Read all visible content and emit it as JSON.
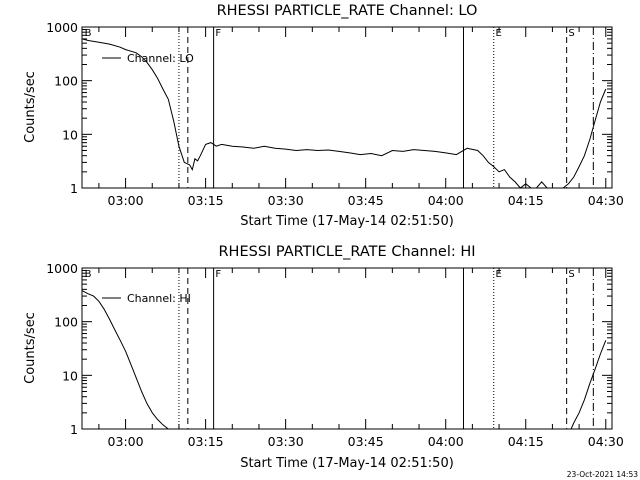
{
  "footer": {
    "timestamp": "23-Oct-2021 14:53"
  },
  "markers": [
    "B",
    "F",
    "E",
    "S"
  ],
  "chart_data": [
    {
      "type": "line",
      "title": "RHESSI PARTICLE_RATE Channel: LO",
      "xlabel": "Start Time (17-May-14 02:51:50)",
      "ylabel": "Counts/sec",
      "yscale": "log",
      "ylim": [
        1,
        1000
      ],
      "xlim": [
        "02:51:50",
        "04:31:10"
      ],
      "x_ticks": [
        "03:00",
        "03:15",
        "03:30",
        "03:45",
        "04:00",
        "04:15",
        "04:30"
      ],
      "y_ticks": [
        "1",
        "10",
        "100",
        "1000"
      ],
      "legend": "top-left",
      "series": [
        {
          "name": "Channel: LO",
          "x": [
            "02:51:50",
            "02:53",
            "02:55",
            "02:57",
            "02:59",
            "03:00",
            "03:02",
            "03:03",
            "03:04",
            "03:05",
            "03:06",
            "03:07",
            "03:08",
            "03:09",
            "03:10",
            "03:11",
            "03:12",
            "03:12:30",
            "03:13",
            "03:13:30",
            "03:14",
            "03:15",
            "03:16",
            "03:17",
            "03:18",
            "03:20",
            "03:22",
            "03:24",
            "03:26",
            "03:28",
            "03:30",
            "03:32",
            "03:34",
            "03:36",
            "03:38",
            "03:40",
            "03:42",
            "03:44",
            "03:46",
            "03:48",
            "03:50",
            "03:52",
            "03:54",
            "03:56",
            "03:58",
            "04:00",
            "04:02",
            "04:04",
            "04:06",
            "04:07",
            "04:08",
            "04:09",
            "04:10",
            "04:11",
            "04:12",
            "04:13",
            "04:14",
            "04:15",
            "04:16",
            "04:17",
            "04:18",
            "04:19",
            "04:20",
            "04:21",
            "04:22",
            "04:23",
            "04:24",
            "04:25",
            "04:26",
            "04:27",
            "04:28",
            "04:29",
            "04:30"
          ],
          "y": [
            600,
            560,
            520,
            480,
            420,
            380,
            330,
            280,
            220,
            160,
            110,
            70,
            45,
            18,
            6,
            3,
            2.7,
            2.2,
            3.5,
            3.2,
            4.0,
            6.5,
            7.0,
            6.0,
            6.5,
            6.0,
            5.8,
            5.5,
            6.0,
            5.5,
            5.3,
            5.0,
            5.2,
            5.0,
            5.1,
            4.8,
            4.5,
            4.2,
            4.4,
            4.0,
            5.0,
            4.8,
            5.2,
            5.0,
            4.8,
            4.5,
            4.2,
            5.5,
            5.0,
            4.0,
            3.0,
            2.5,
            2.0,
            2.2,
            1.6,
            1.3,
            1.0,
            1.2,
            1.0,
            1.0,
            1.3,
            1.0,
            1.0,
            1.0,
            1.0,
            1.2,
            1.6,
            2.5,
            4.0,
            8.0,
            18,
            40,
            70
          ]
        }
      ]
    },
    {
      "type": "line",
      "title": "RHESSI PARTICLE_RATE Channel: HI",
      "xlabel": "Start Time (17-May-14 02:51:50)",
      "ylabel": "Counts/sec",
      "yscale": "log",
      "ylim": [
        1,
        1000
      ],
      "xlim": [
        "02:51:50",
        "04:31:10"
      ],
      "x_ticks": [
        "03:00",
        "03:15",
        "03:30",
        "03:45",
        "04:00",
        "04:15",
        "04:30"
      ],
      "y_ticks": [
        "1",
        "10",
        "100",
        "1000"
      ],
      "legend": "top-left",
      "series": [
        {
          "name": "Channel: HI",
          "x": [
            "02:51:50",
            "02:53",
            "02:54",
            "02:55",
            "02:56",
            "02:57",
            "02:58",
            "02:59",
            "03:00",
            "03:01",
            "03:02",
            "03:03",
            "03:04",
            "03:05",
            "03:06",
            "03:07",
            "03:08",
            "04:23:30",
            "04:24",
            "04:25",
            "04:26",
            "04:27",
            "04:28",
            "04:29",
            "04:30"
          ],
          "y": [
            380,
            330,
            300,
            240,
            170,
            110,
            70,
            45,
            28,
            16,
            9,
            5,
            3,
            2,
            1.5,
            1.2,
            1.0,
            1.0,
            1.3,
            2.0,
            3.5,
            7,
            13,
            25,
            45
          ]
        }
      ]
    }
  ]
}
